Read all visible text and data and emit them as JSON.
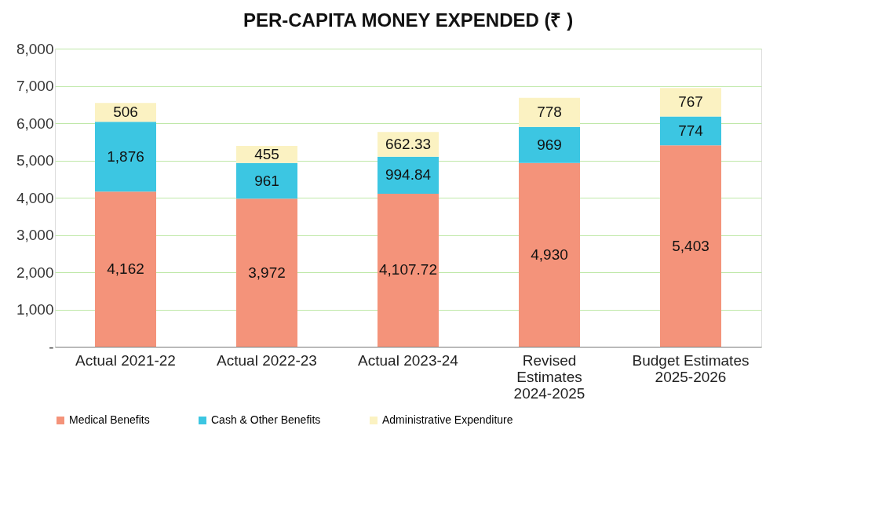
{
  "chart_data": {
    "type": "bar",
    "stacked": true,
    "title": "PER-CAPITA MONEY EXPENDED (₹ )",
    "categories": [
      "Actual 2021-22",
      "Actual 2022-23",
      "Actual 2023-24",
      "Revised Estimates 2024-2025",
      "Budget Estimates 2025-2026"
    ],
    "series": [
      {
        "name": "Medical Benefits",
        "color": "#f4937a",
        "values": [
          4162,
          3972,
          4107.72,
          4930,
          5403
        ],
        "value_labels": [
          "4,162",
          "3,972",
          "4,107.72",
          "4,930",
          "5,403"
        ]
      },
      {
        "name": "Cash & Other Benefits",
        "color": "#3cc6e2",
        "values": [
          1876,
          961,
          994.84,
          969,
          774
        ],
        "value_labels": [
          "1,876",
          "961",
          "994.84",
          "969",
          "774"
        ]
      },
      {
        "name": "Administrative Expenditure",
        "color": "#fbf2c2",
        "values": [
          506,
          455,
          662.33,
          778,
          767
        ],
        "value_labels": [
          "506",
          "455",
          "662.33",
          "778",
          "767"
        ]
      }
    ],
    "ylim": [
      0,
      8000
    ],
    "yticks": [
      {
        "value": 0,
        "label": "-"
      },
      {
        "value": 1000,
        "label": "1,000"
      },
      {
        "value": 2000,
        "label": "2,000"
      },
      {
        "value": 3000,
        "label": "3,000"
      },
      {
        "value": 4000,
        "label": "4,000"
      },
      {
        "value": 5000,
        "label": "5,000"
      },
      {
        "value": 6000,
        "label": "6,000"
      },
      {
        "value": 7000,
        "label": "7,000"
      },
      {
        "value": 8000,
        "label": "8,000"
      }
    ],
    "grid": "y",
    "legend": "bottom"
  }
}
